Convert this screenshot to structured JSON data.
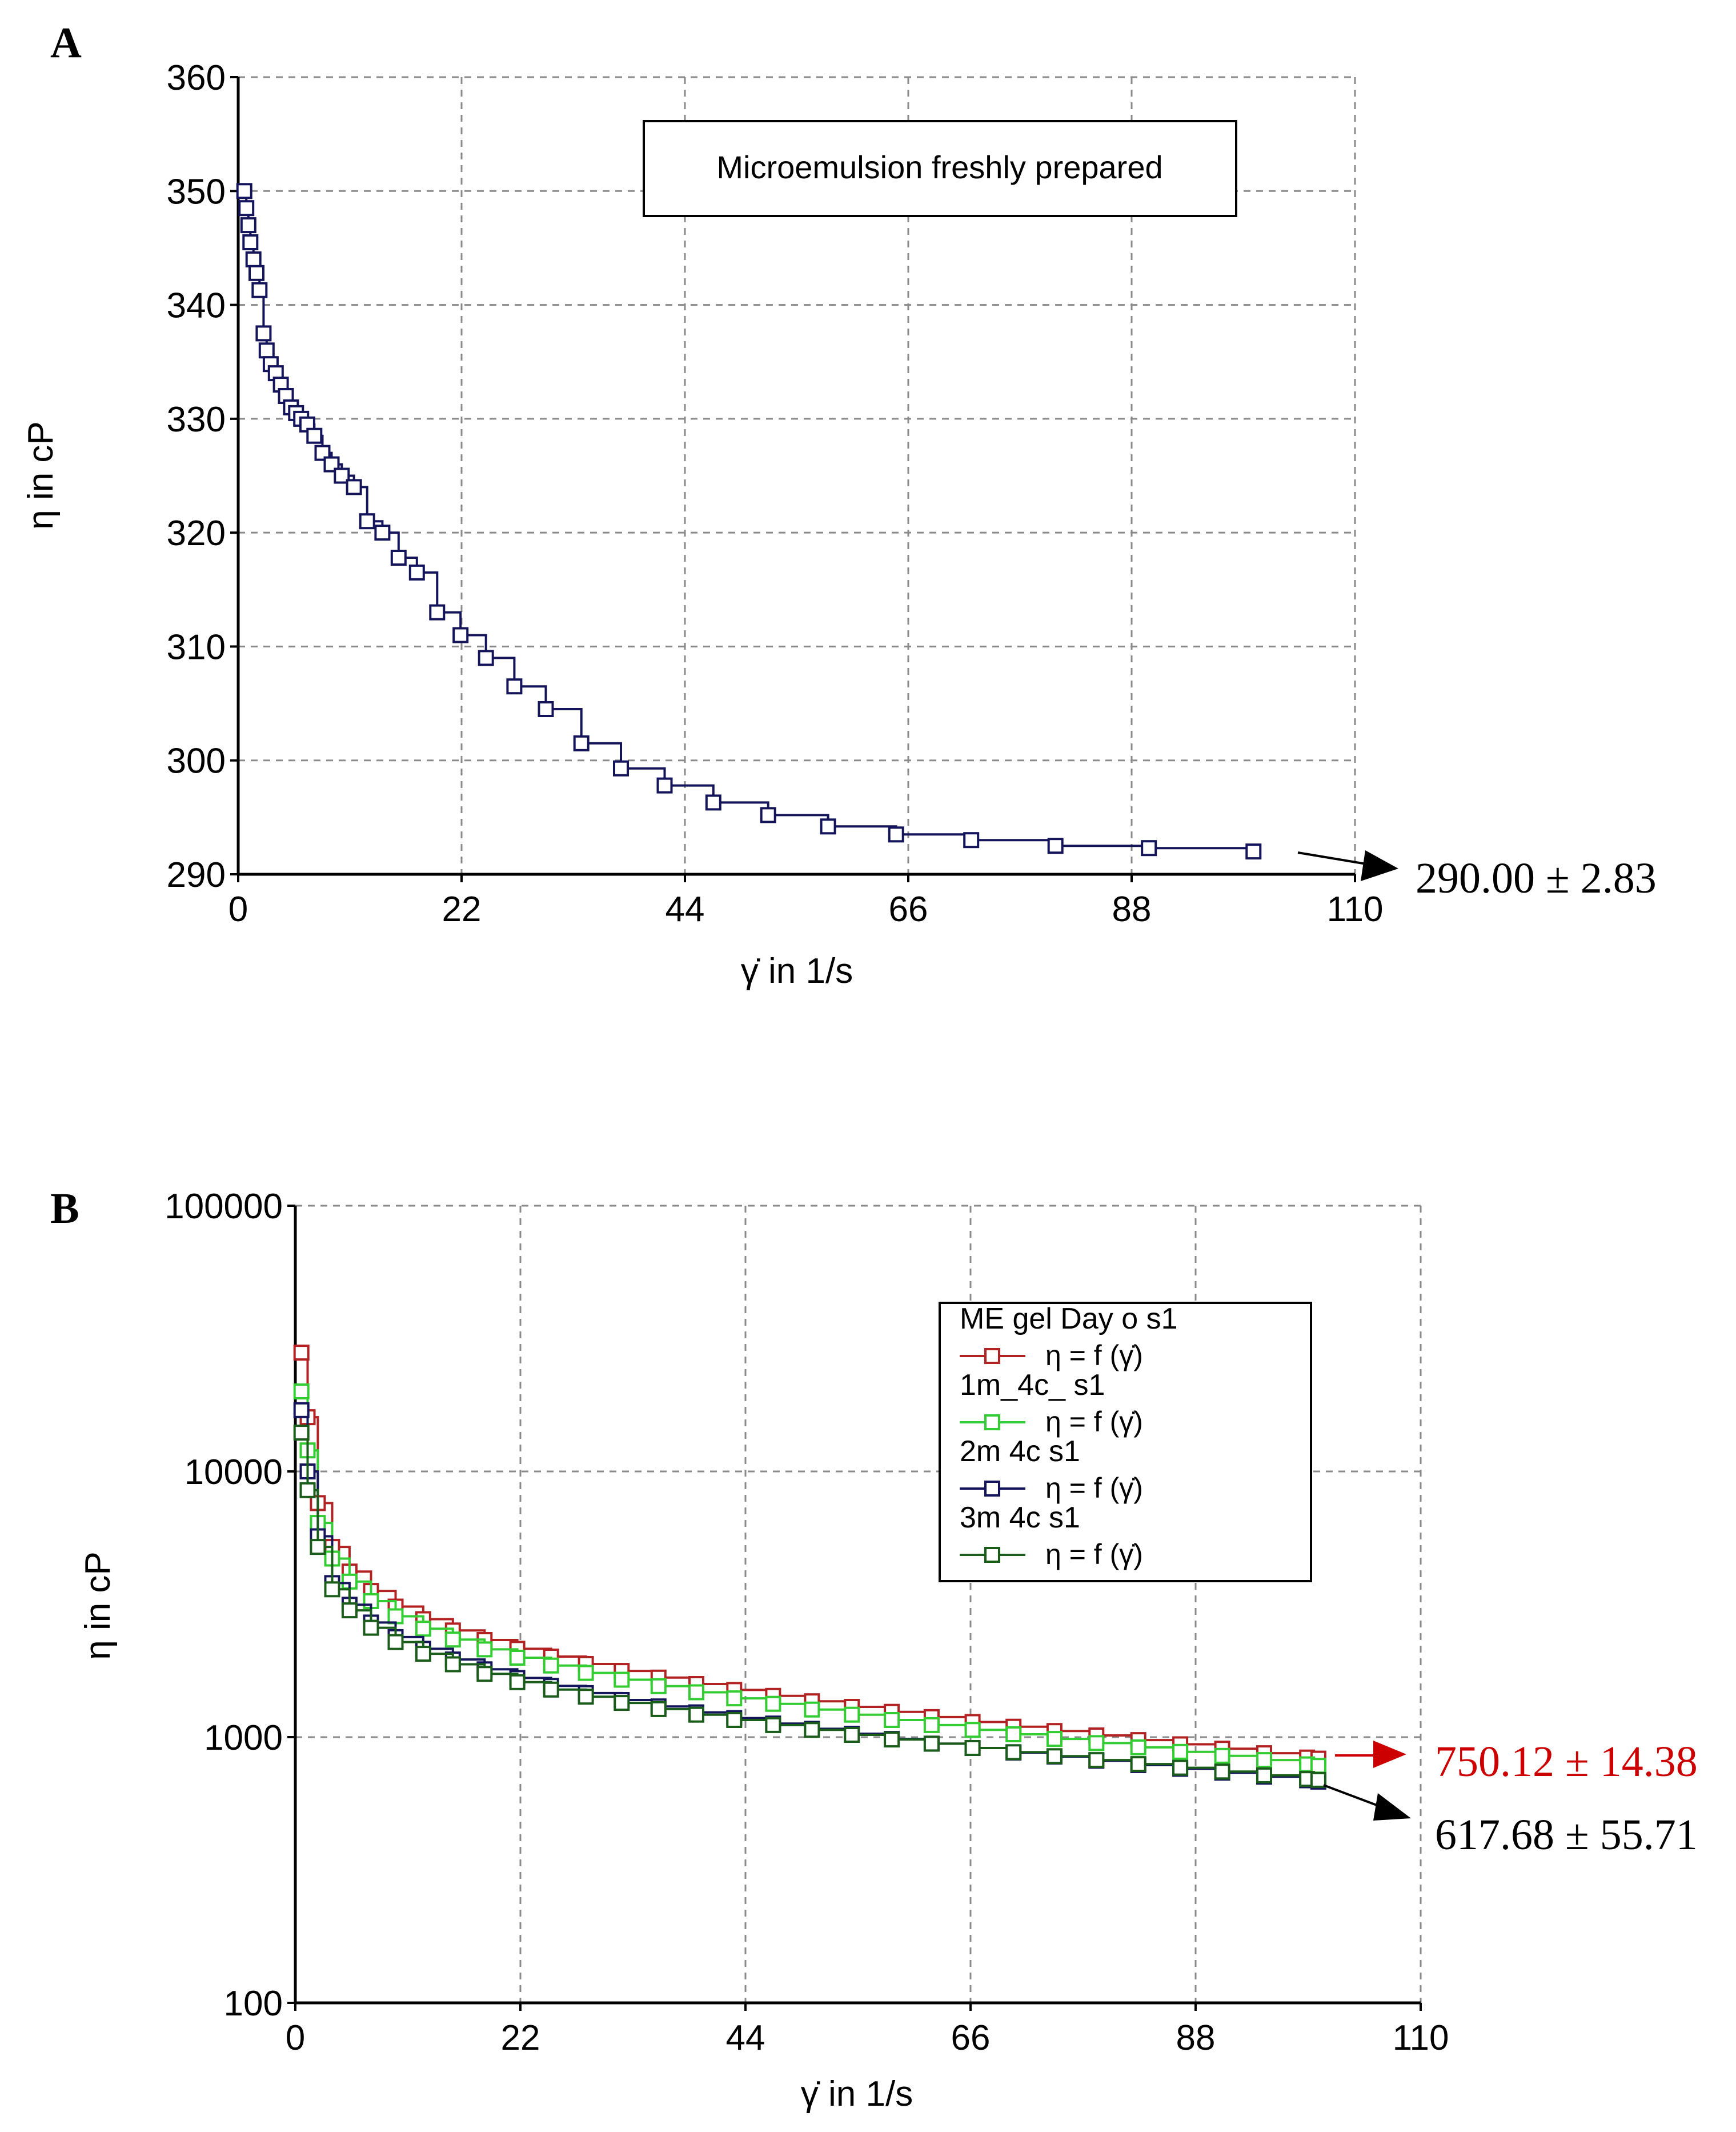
{
  "chart_data": [
    {
      "panel_label": "A",
      "type": "scatter",
      "title": "",
      "xlabel": "γ̇ in 1/s",
      "ylabel": "η in cP",
      "xlim": [
        0,
        110
      ],
      "ylim": [
        290,
        360
      ],
      "y_scale": "linear",
      "xticks": [
        "0",
        "22",
        "44",
        "66",
        "88",
        "110"
      ],
      "yticks": [
        "290",
        "300",
        "310",
        "320",
        "330",
        "340",
        "350",
        "360"
      ],
      "grid": true,
      "legend": {
        "position": "top-right",
        "box_text": "Microemulsion freshly prepared"
      },
      "series": [
        {
          "name": "Microemulsion freshly prepared",
          "color": "#14145a",
          "x": [
            0.6,
            0.8,
            1.0,
            1.2,
            1.5,
            1.8,
            2.1,
            2.5,
            2.8,
            3.2,
            3.7,
            4.2,
            4.7,
            5.2,
            5.7,
            6.2,
            6.8,
            7.5,
            8.3,
            9.2,
            10.2,
            11.4,
            12.7,
            14.2,
            15.8,
            17.6,
            19.6,
            21.9,
            24.4,
            27.2,
            30.3,
            33.8,
            37.7,
            42.0,
            46.8,
            52.2,
            58.1,
            64.8,
            72.2,
            80.5,
            89.7,
            100.0
          ],
          "y": [
            350.0,
            348.5,
            347.0,
            345.5,
            344.0,
            342.8,
            341.3,
            337.5,
            336.0,
            334.8,
            334.0,
            333.0,
            332.0,
            331.0,
            330.5,
            330.0,
            329.5,
            328.5,
            327.0,
            326.0,
            325.0,
            324.0,
            321.0,
            320.0,
            317.8,
            316.5,
            313.0,
            311.0,
            309.0,
            306.5,
            304.5,
            301.5,
            299.3,
            297.8,
            296.3,
            295.2,
            294.2,
            293.5,
            293.0,
            292.5,
            292.3,
            292.0
          ]
        }
      ],
      "annotation": {
        "text": "290.00 ± 2.83",
        "color": "#000000"
      }
    },
    {
      "panel_label": "B",
      "type": "scatter",
      "title": "",
      "xlabel": "γ̇ in 1/s",
      "ylabel": "η in cP",
      "xlim": [
        0,
        110
      ],
      "ylim": [
        100,
        100000
      ],
      "y_scale": "log",
      "xticks": [
        "0",
        "22",
        "44",
        "66",
        "88",
        "110"
      ],
      "yticks": [
        "100",
        "1000",
        "10000",
        "100000"
      ],
      "grid": true,
      "legend": {
        "position": "top-right"
      },
      "x": [
        0.6,
        1.2,
        2.2,
        3.6,
        5.3,
        7.4,
        9.8,
        12.5,
        15.4,
        18.5,
        21.7,
        25.0,
        28.4,
        31.9,
        35.5,
        39.2,
        42.9,
        46.7,
        50.5,
        54.4,
        58.3,
        62.2,
        66.2,
        70.2,
        74.2,
        78.3,
        82.4,
        86.5,
        90.6,
        94.7,
        98.9,
        100.0
      ],
      "series": [
        {
          "name": "ME gel Day o s1",
          "legend_entry": "η = f (γ̇)",
          "color": "#b22222",
          "y": [
            28000,
            16000,
            7600,
            5200,
            4200,
            3550,
            3100,
            2780,
            2520,
            2320,
            2150,
            2010,
            1885,
            1775,
            1675,
            1585,
            1505,
            1430,
            1365,
            1300,
            1245,
            1190,
            1140,
            1095,
            1055,
            1015,
            975,
            940,
            905,
            870,
            838,
            830
          ]
        },
        {
          "name": "1m_4c_ s1",
          "legend_entry": "η = f (γ̇)",
          "color": "#33cc33",
          "y": [
            20000,
            12000,
            6400,
            4700,
            3850,
            3250,
            2850,
            2560,
            2330,
            2140,
            1990,
            1860,
            1745,
            1645,
            1555,
            1475,
            1400,
            1335,
            1270,
            1215,
            1160,
            1110,
            1065,
            1025,
            985,
            950,
            915,
            880,
            850,
            820,
            790,
            780
          ]
        },
        {
          "name": "2m 4c s1",
          "legend_entry": "η = f (γ̇)",
          "color": "#14145a",
          "y": [
            17000,
            10000,
            5700,
            3800,
            3150,
            2700,
            2380,
            2150,
            1960,
            1800,
            1670,
            1560,
            1465,
            1380,
            1305,
            1240,
            1180,
            1125,
            1075,
            1030,
            985,
            945,
            910,
            875,
            845,
            815,
            785,
            760,
            735,
            710,
            688,
            680
          ]
        },
        {
          "name": "3m 4c s1",
          "legend_entry": "η = f (γ̇)",
          "color": "#1a5c1a",
          "y": [
            14000,
            8500,
            5200,
            3600,
            3000,
            2580,
            2280,
            2060,
            1880,
            1730,
            1610,
            1510,
            1420,
            1345,
            1275,
            1215,
            1160,
            1110,
            1065,
            1020,
            980,
            945,
            910,
            878,
            848,
            820,
            792,
            767,
            742,
            718,
            696,
            690
          ]
        }
      ],
      "annotations": [
        {
          "text": "750.12 ± 14.38",
          "color": "#cc0000"
        },
        {
          "text": "617.68 ± 55.71",
          "color": "#000000"
        }
      ]
    }
  ]
}
